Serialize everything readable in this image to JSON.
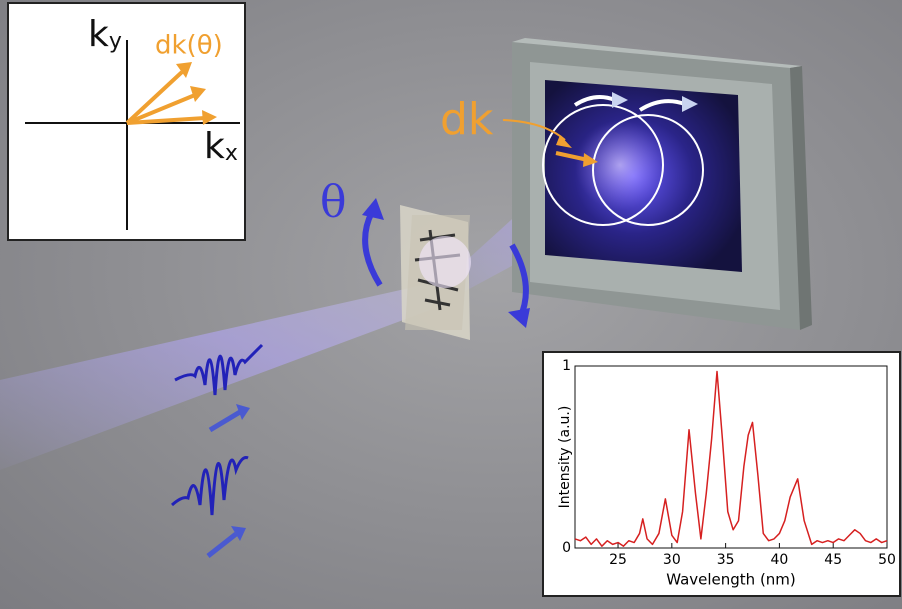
{
  "k_space": {
    "ky": {
      "letter": "k",
      "subscript": "y"
    },
    "kx": {
      "letter": "k",
      "subscript": "x"
    },
    "arrow_label": "dk(θ)"
  },
  "scene": {
    "screen_label": "dk",
    "rotation_label": "θ"
  },
  "chart_data": {
    "type": "line",
    "xlabel": "Wavelength (nm)",
    "ylabel": "Intensity (a.u.)",
    "xlim": [
      21,
      50
    ],
    "xticks": [
      25,
      30,
      35,
      40,
      45,
      50
    ],
    "ylim": [
      0,
      1
    ],
    "yticks": [
      0,
      1
    ],
    "x": [
      21,
      21.5,
      22,
      22.5,
      23,
      23.5,
      24,
      24.5,
      25,
      25.5,
      26,
      26.5,
      27,
      27.3,
      27.7,
      28.2,
      28.8,
      29.4,
      30,
      30.5,
      31,
      31.6,
      32.2,
      32.7,
      33.2,
      33.7,
      34.2,
      34.7,
      35.2,
      35.7,
      36.2,
      36.7,
      37.1,
      37.5,
      38,
      38.5,
      39,
      39.5,
      40,
      40.5,
      41,
      41.7,
      42.3,
      43,
      43.5,
      44,
      44.5,
      45,
      45.5,
      46,
      46.5,
      47,
      47.5,
      48,
      48.5,
      49,
      49.5,
      50
    ],
    "series": [
      {
        "color": "#d62020",
        "values": [
          0.05,
          0.04,
          0.06,
          0.02,
          0.05,
          0.01,
          0.04,
          0.02,
          0.03,
          0.01,
          0.04,
          0.03,
          0.08,
          0.16,
          0.05,
          0.02,
          0.08,
          0.27,
          0.07,
          0.03,
          0.2,
          0.65,
          0.3,
          0.05,
          0.3,
          0.6,
          0.97,
          0.6,
          0.2,
          0.1,
          0.15,
          0.45,
          0.62,
          0.69,
          0.4,
          0.08,
          0.04,
          0.05,
          0.08,
          0.15,
          0.28,
          0.38,
          0.15,
          0.02,
          0.04,
          0.03,
          0.04,
          0.03,
          0.05,
          0.04,
          0.07,
          0.1,
          0.08,
          0.04,
          0.03,
          0.05,
          0.03,
          0.04
        ]
      }
    ]
  }
}
